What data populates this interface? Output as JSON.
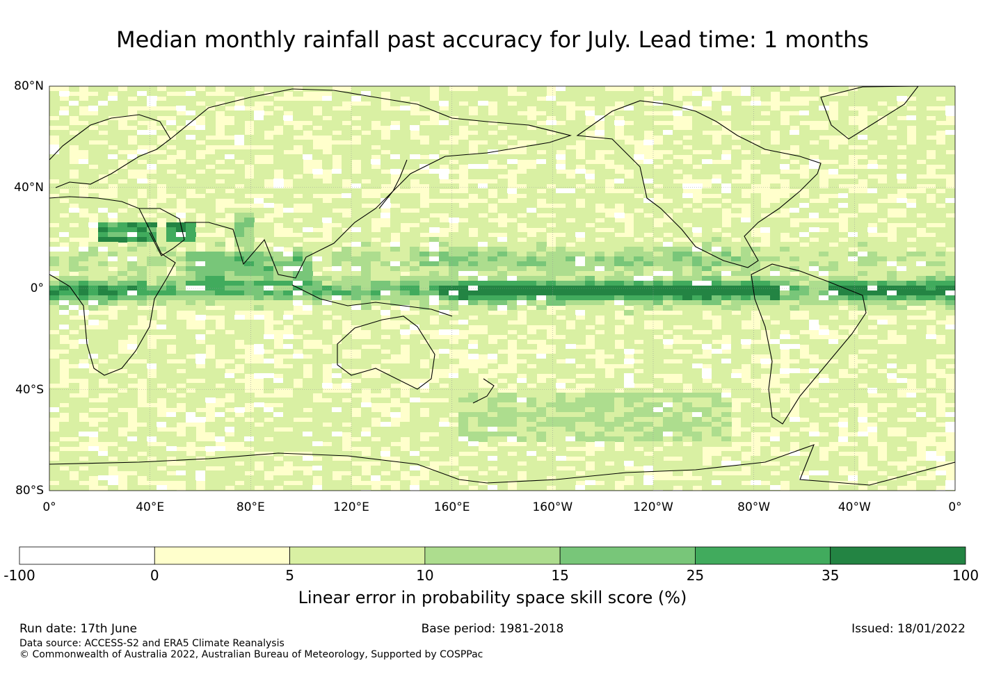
{
  "title": "Median monthly rainfall past accuracy for July. Lead time: 1 months",
  "map": {
    "projection": "equirectangular",
    "central_longitude": "180",
    "lat_range": [
      -80,
      80
    ],
    "lon_start": "0°",
    "lat_ticks": [
      "80°N",
      "40°N",
      "0°",
      "40°S",
      "80°S"
    ],
    "lon_ticks": [
      "0°",
      "40°E",
      "80°E",
      "120°E",
      "160°E",
      "160°W",
      "120°W",
      "80°W",
      "40°W",
      "0°"
    ],
    "gridlines": true,
    "coastlines": true
  },
  "colorbar": {
    "bounds": [
      "-100",
      "0",
      "5",
      "10",
      "15",
      "25",
      "35",
      "100"
    ],
    "colors": [
      "#ffffff",
      "#ffffcc",
      "#d9f0a3",
      "#addd8e",
      "#78c679",
      "#41ab5d",
      "#238443"
    ],
    "label": "Linear error in probability space skill score (%)"
  },
  "footer": {
    "run_date": "Run date: 17th June",
    "base_period": "Base period: 1981-2018",
    "issued": "Issued: 18/01/2022",
    "data_source": "Data source: ACCESS-S2 and ERA5 Climate Reanalysis",
    "copyright": "© Commonwealth of Australia 2022, Australian Bureau of Meteorology, Supported by COSPPac"
  }
}
